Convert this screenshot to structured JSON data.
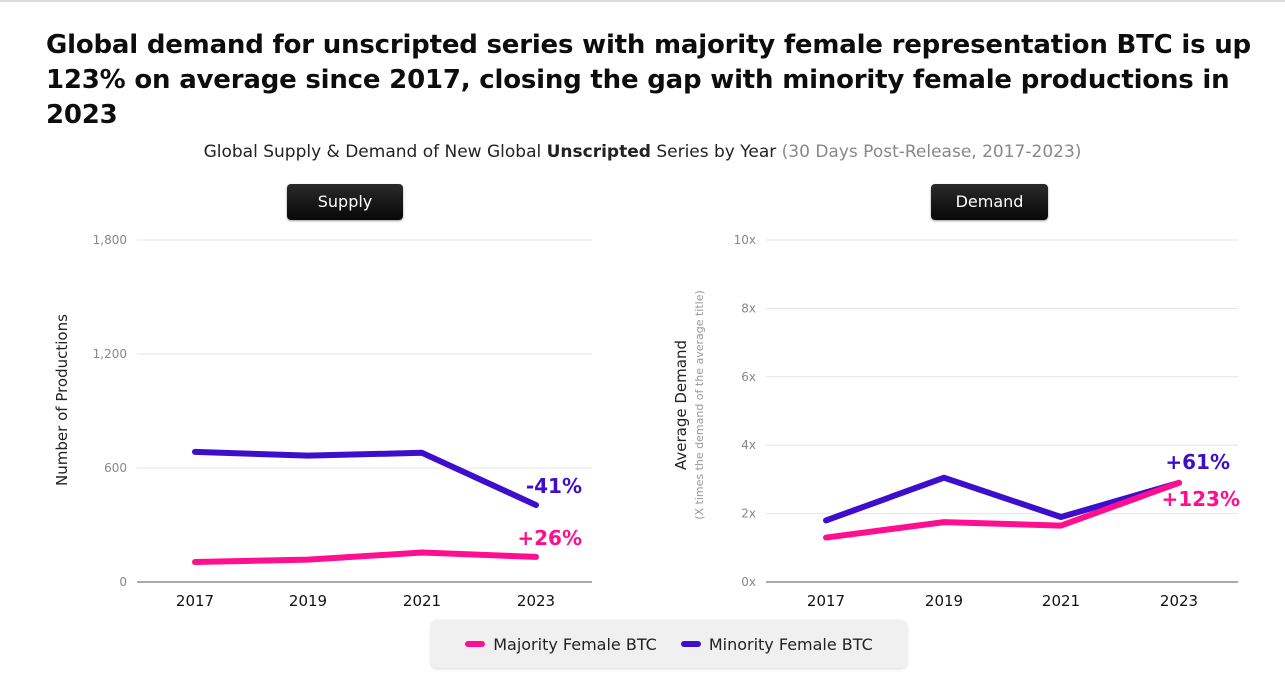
{
  "headline": "Global demand for unscripted series with majority female representation BTC is up 123% on average since 2017, closing the gap with minority female productions in 2023",
  "subtitle": {
    "pre": "Global Supply & Demand of New Global ",
    "bold": "Unscripted",
    "post": " Series by Year ",
    "paren": "(30 Days Post-Release, 2017-2023)"
  },
  "colors": {
    "majority": "#ff0f8f",
    "minority": "#3d0fcc"
  },
  "legend": {
    "majority": "Majority Female BTC",
    "minority": "Minority Female BTC"
  },
  "chart_data": [
    {
      "type": "line",
      "panel_label": "Supply",
      "ylabel": "Number of Productions",
      "categories": [
        "2017",
        "2019",
        "2021",
        "2023"
      ],
      "yticks": [
        0,
        600,
        1200,
        1800
      ],
      "ytick_labels": [
        "0",
        "600",
        "1,200",
        "1,800"
      ],
      "ylim": [
        0,
        1800
      ],
      "series": [
        {
          "name": "Majority Female BTC",
          "values": [
            105,
            118,
            155,
            132
          ],
          "change_label": "+26%"
        },
        {
          "name": "Minority Female BTC",
          "values": [
            685,
            665,
            680,
            405
          ],
          "change_label": "-41%"
        }
      ]
    },
    {
      "type": "line",
      "panel_label": "Demand",
      "ylabel": "Average Demand",
      "ylabel_sub": "(X times the demand of the average title)",
      "categories": [
        "2017",
        "2019",
        "2021",
        "2023"
      ],
      "yticks": [
        0,
        2,
        4,
        6,
        8,
        10
      ],
      "ytick_labels": [
        "0x",
        "2x",
        "4x",
        "6x",
        "8x",
        "10x"
      ],
      "ylim": [
        0,
        10
      ],
      "series": [
        {
          "name": "Majority Female BTC",
          "values": [
            1.3,
            1.75,
            1.65,
            2.9
          ],
          "change_label": "+123%"
        },
        {
          "name": "Minority Female BTC",
          "values": [
            1.8,
            3.05,
            1.9,
            2.9
          ],
          "change_label": "+61%"
        }
      ]
    }
  ]
}
